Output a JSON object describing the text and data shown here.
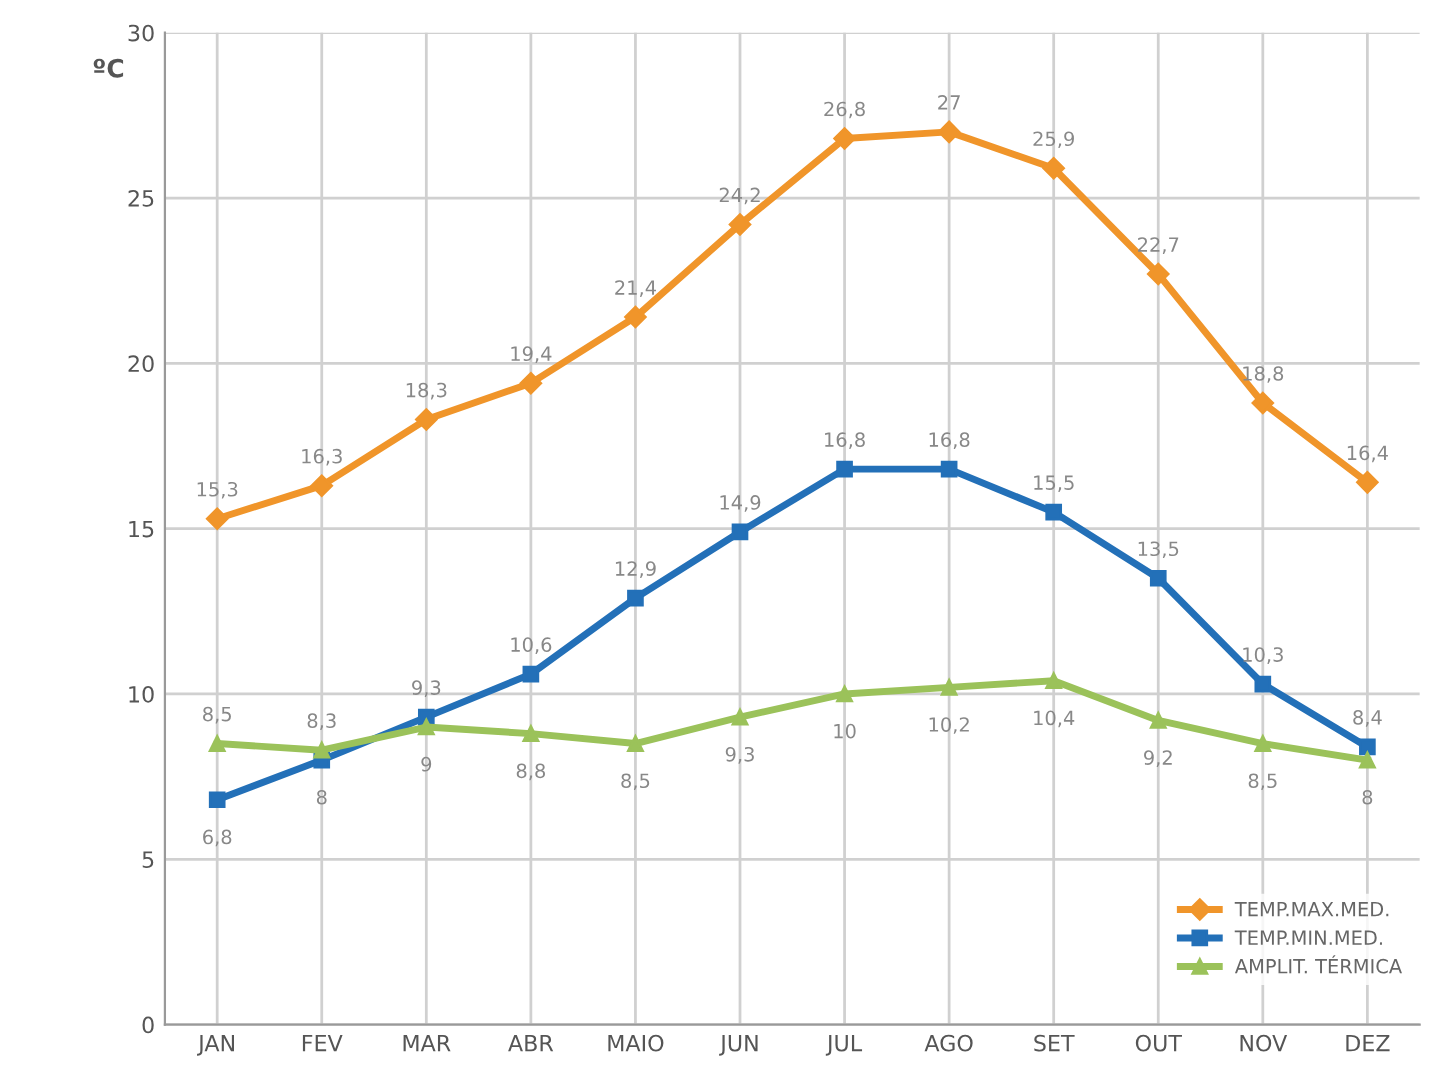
{
  "chart_data": {
    "type": "line",
    "ylabel": "ºC",
    "categories": [
      "JAN",
      "FEV",
      "MAR",
      "ABR",
      "MAIO",
      "JUN",
      "JUL",
      "AGO",
      "SET",
      "OUT",
      "NOV",
      "DEZ"
    ],
    "series": [
      {
        "name": "TEMP.MAX.MED.",
        "color": "#f0952a",
        "marker": "diamond",
        "values": [
          15.3,
          16.3,
          18.3,
          19.4,
          21.4,
          24.2,
          26.8,
          27,
          25.9,
          22.7,
          18.8,
          16.4
        ],
        "value_labels": [
          "15,3",
          "16,3",
          "18,3",
          "19,4",
          "21,4",
          "24,2",
          "26,8",
          "27",
          "25,9",
          "22,7",
          "18,8",
          "16,4"
        ]
      },
      {
        "name": "TEMP.MIN.MED.",
        "color": "#2370b8",
        "marker": "square",
        "values": [
          6.8,
          8,
          9.3,
          10.6,
          12.9,
          14.9,
          16.8,
          16.8,
          15.5,
          13.5,
          10.3,
          8.4
        ],
        "value_labels": [
          "6,8",
          "8",
          "9,3",
          "10,6",
          "12,9",
          "14,9",
          "16,8",
          "16,8",
          "15,5",
          "13,5",
          "10,3",
          "8,4"
        ]
      },
      {
        "name": "AMPLIT. TÉRMICA",
        "color": "#9bc25a",
        "marker": "triangle",
        "values": [
          8.5,
          8.3,
          9,
          8.8,
          8.5,
          9.3,
          10,
          10.2,
          10.4,
          9.2,
          8.5,
          8
        ],
        "value_labels": [
          "8,5",
          "8,3",
          "9",
          "8,8",
          "8,5",
          "9,3",
          "10",
          "10,2",
          "10,4",
          "9,2",
          "8,5",
          "8"
        ]
      }
    ],
    "ylim": [
      0,
      30
    ],
    "yticks": [
      0,
      5,
      10,
      15,
      20,
      25,
      30
    ],
    "grid": true,
    "legend": "bottom right",
    "line_style": "solid"
  }
}
